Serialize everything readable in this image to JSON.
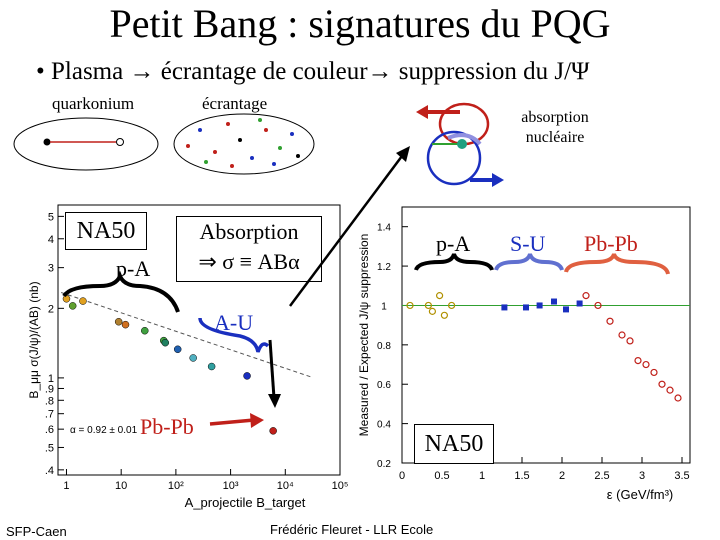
{
  "slide": {
    "title": "Petit Bang : signatures du PQG",
    "bullet": "•  Plasma → écrantage de couleur→ suppression du J/Ψ",
    "label_quarkonium": "quarkonium",
    "label_sigma": "σ",
    "label_ecrantage": "écrantage",
    "label_absorption_nucl": "absorption\nnucléaire",
    "box_na50": "NA50",
    "label_pA_left": "p-A",
    "box_absorption_line1": "Absorption",
    "box_absorption_line2": "⇒ σ ≡ ABα",
    "label_AU": "A-U",
    "label_PbPb_left": "Pb-Pb",
    "label_pA_right": "p-A",
    "label_SU": "S-U",
    "label_PbPb_right": "Pb-Pb",
    "box_na50_right": "NA50",
    "footer_left": "SFP-Caen",
    "footer_center": "Frédéric Fleuret - LLR Ecole"
  },
  "chart_data": [
    {
      "type": "scatter",
      "xlabel": "A_projectile B_target",
      "ylabel": "B_μμ σ(J/ψ)/(AB) (nb)",
      "xscale": "log",
      "yscale": "log",
      "xlim": [
        0.7,
        100000
      ],
      "x_tick_labels": [
        "1",
        "10",
        "10²",
        "10³",
        "10⁴",
        "10⁵"
      ],
      "y_tick_labels": [
        "5",
        "4",
        "3",
        "2",
        "1",
        ".9",
        ".8",
        ".7",
        ".6",
        ".5",
        ".4"
      ],
      "fit_annotation": "α = 0.92 ± 0.01",
      "points": [
        {
          "x": 1,
          "y": 2.2,
          "color": "#e0a020"
        },
        {
          "x": 2,
          "y": 2.15,
          "color": "#e0a020"
        },
        {
          "x": 1.3,
          "y": 2.05,
          "color": "#60a030"
        },
        {
          "x": 9,
          "y": 1.75,
          "color": "#b08030"
        },
        {
          "x": 12,
          "y": 1.7,
          "color": "#d07020"
        },
        {
          "x": 27,
          "y": 1.6,
          "color": "#40a040"
        },
        {
          "x": 60,
          "y": 1.45,
          "color": "#40a040"
        },
        {
          "x": 64,
          "y": 1.42,
          "color": "#208060"
        },
        {
          "x": 108,
          "y": 1.33,
          "color": "#2060b0"
        },
        {
          "x": 207,
          "y": 1.22,
          "color": "#50b0c0"
        },
        {
          "x": 450,
          "y": 1.12,
          "color": "#30a0a0"
        },
        {
          "x": 2000,
          "y": 1.02,
          "color": "#1a2fbf"
        },
        {
          "x": 6000,
          "y": 0.59,
          "color": "#c0201a"
        }
      ]
    },
    {
      "type": "scatter",
      "xlabel": "ε (GeV/fm³)",
      "ylabel": "Measured / Expected J/ψ suppression",
      "xlim": [
        0,
        3.6
      ],
      "ylim": [
        0.2,
        1.5
      ],
      "x_tick_labels": [
        "0",
        "0.5",
        "1",
        "1.5",
        "2",
        "2.5",
        "3",
        "3.5"
      ],
      "y_tick_labels": [
        "1.4",
        "1.2",
        "1",
        "0.8",
        "0.6",
        "0.4",
        "0.2"
      ],
      "reference_line": 1.0,
      "series": [
        {
          "name": "p-A",
          "color": "#b09000",
          "x": [
            0.1,
            0.33,
            0.38,
            0.47,
            0.53,
            0.62
          ],
          "y": [
            1.0,
            1.0,
            0.97,
            1.05,
            0.95,
            1.0
          ]
        },
        {
          "name": "S-U",
          "color": "#1a2fbf",
          "x": [
            1.28,
            1.55,
            1.72,
            1.9,
            2.05,
            2.22
          ],
          "y": [
            0.99,
            0.99,
            1.0,
            1.02,
            0.98,
            1.01
          ]
        },
        {
          "name": "Pb-Pb",
          "color": "#c0201a",
          "x": [
            2.3,
            2.45,
            2.6,
            2.75,
            2.85,
            2.95,
            3.05,
            3.15,
            3.25,
            3.35,
            3.45
          ],
          "y": [
            1.05,
            1.0,
            0.92,
            0.85,
            0.82,
            0.72,
            0.7,
            0.66,
            0.6,
            0.57,
            0.53
          ]
        }
      ]
    }
  ]
}
